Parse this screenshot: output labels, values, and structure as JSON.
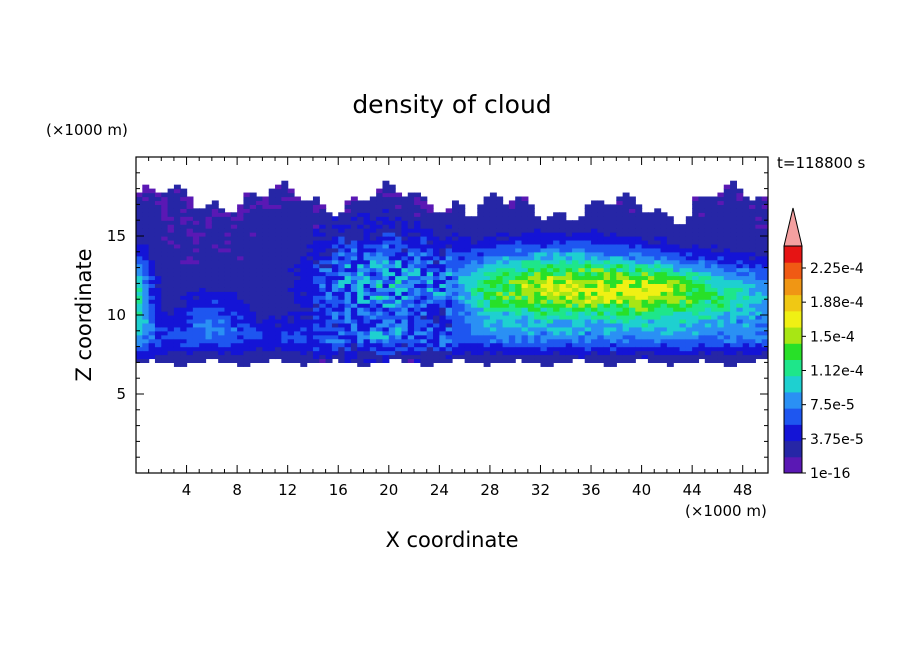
{
  "chart_data": {
    "type": "heatmap",
    "title": "density of cloud",
    "xlabel": "X coordinate",
    "ylabel": "Z coordinate",
    "x_unit": "(×1000 m)",
    "y_unit": "(×1000 m)",
    "time_label": "t=118800 s",
    "xlim": [
      0,
      50
    ],
    "ylim": [
      0,
      20
    ],
    "x_ticks": [
      4,
      8,
      12,
      16,
      20,
      24,
      28,
      32,
      36,
      40,
      44,
      48
    ],
    "x_tick_labels": [
      "4",
      "8",
      "12",
      "16",
      "20",
      "24",
      "28",
      "32",
      "36",
      "40",
      "44",
      "48"
    ],
    "y_ticks": [
      5,
      10,
      15
    ],
    "y_tick_labels": [
      "5",
      "10",
      "15"
    ],
    "colorbar": {
      "levels": [
        1e-16,
        1.875e-05,
        3.75e-05,
        5.625e-05,
        7.5e-05,
        9.375e-05,
        0.0001125,
        0.00013125,
        0.00015,
        0.00016875,
        0.0001875,
        0.00020625,
        0.000225,
        0.00024375
      ],
      "labels": [
        "2.25e-4",
        "1.88e-4",
        "1.5e-4",
        "1.12e-4",
        "7.5e-5",
        "3.75e-5",
        "1e-16"
      ],
      "colors": [
        "#5a18b4",
        "#2626a6",
        "#1414d6",
        "#1e56f0",
        "#2a90f4",
        "#1ed0d0",
        "#1ee68a",
        "#28e028",
        "#a8e614",
        "#f0f014",
        "#f0c814",
        "#f09614",
        "#f05a14",
        "#e61414"
      ],
      "extend_color": "#f4a0a0"
    },
    "cloud_layer": {
      "x_range": [
        0,
        50
      ],
      "base_z": 7.0,
      "top_z_range": [
        16.5,
        18.5
      ],
      "max_density": 0.00017
    }
  }
}
